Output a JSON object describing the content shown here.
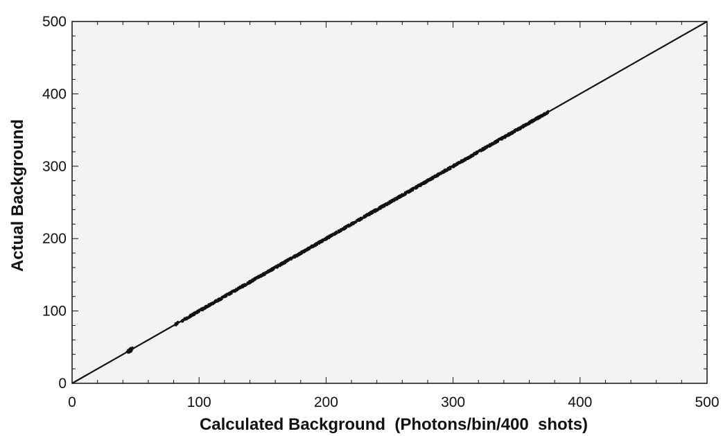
{
  "colors": {
    "plot_background": "#f3f3f3",
    "page_background": "#ffffff",
    "ink": "#111111"
  },
  "chart_data": {
    "type": "scatter",
    "title": "",
    "xlabel": "Calculated Background  (Photons/bin/400  shots)",
    "ylabel": "Actual Background",
    "xlim": [
      0,
      500
    ],
    "ylim": [
      0,
      500
    ],
    "x_ticks": [
      0,
      100,
      200,
      300,
      400,
      500
    ],
    "y_ticks": [
      0,
      100,
      200,
      300,
      400,
      500
    ],
    "x_minor_step": 20,
    "y_minor_step": 20,
    "grid": false,
    "legend": "none",
    "series": [
      {
        "kind": "points",
        "description_x_range": [
          44,
          375
        ],
        "clusters": [
          {
            "x_from": 43,
            "x_to": 48,
            "scatter": 3
          },
          {
            "x_from": 81,
            "x_to": 84,
            "scatter": 2
          },
          {
            "x_from": 86,
            "x_to": 375,
            "scatter": 2
          }
        ]
      },
      {
        "kind": "reference-line",
        "x": [
          0,
          500
        ],
        "y": [
          0,
          500
        ]
      }
    ]
  }
}
